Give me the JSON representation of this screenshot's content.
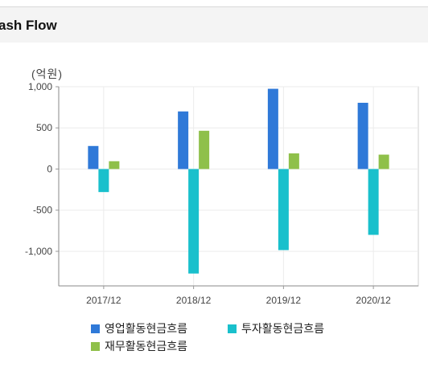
{
  "header": {
    "title": "ash Flow"
  },
  "chart_data": {
    "type": "bar",
    "unit_label": "(억원)",
    "categories": [
      "2017/12",
      "2018/12",
      "2019/12",
      "2020/12"
    ],
    "series": [
      {
        "name": "영업활동현금흐름",
        "color": "#2f79d8",
        "values": [
          280,
          700,
          975,
          805
        ]
      },
      {
        "name": "투자활동현금흐름",
        "color": "#19c0cc",
        "values": [
          -280,
          -1270,
          -985,
          -800
        ]
      },
      {
        "name": "재무활동현금흐름",
        "color": "#8fc04a",
        "values": [
          95,
          465,
          190,
          175
        ]
      }
    ],
    "y_ticks": [
      "1,000",
      "500",
      "0",
      "-500",
      "-1,000"
    ],
    "y_tick_values": [
      1000,
      500,
      0,
      -500,
      -1000
    ],
    "ylim": [
      -1420,
      1000
    ],
    "grid": true,
    "legend": "bottom"
  }
}
